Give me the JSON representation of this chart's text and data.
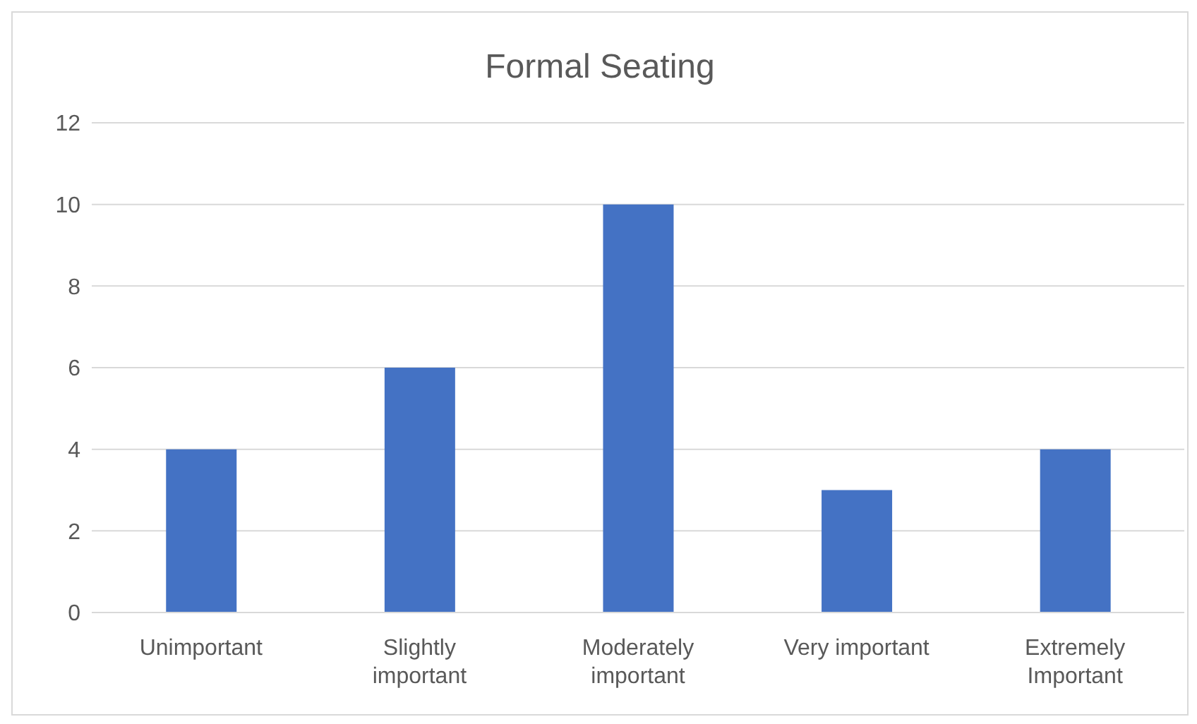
{
  "chart_data": {
    "type": "bar",
    "title": "Formal Seating",
    "categories": [
      "Unimportant",
      "Slightly important",
      "Moderately important",
      "Very important",
      "Extremely Important"
    ],
    "values": [
      4,
      6,
      10,
      3,
      4
    ],
    "color": "#4472c4",
    "ylim": [
      0,
      12
    ],
    "yticks": [
      0,
      2,
      4,
      6,
      8,
      10,
      12
    ],
    "grid": "y",
    "legend": false
  }
}
